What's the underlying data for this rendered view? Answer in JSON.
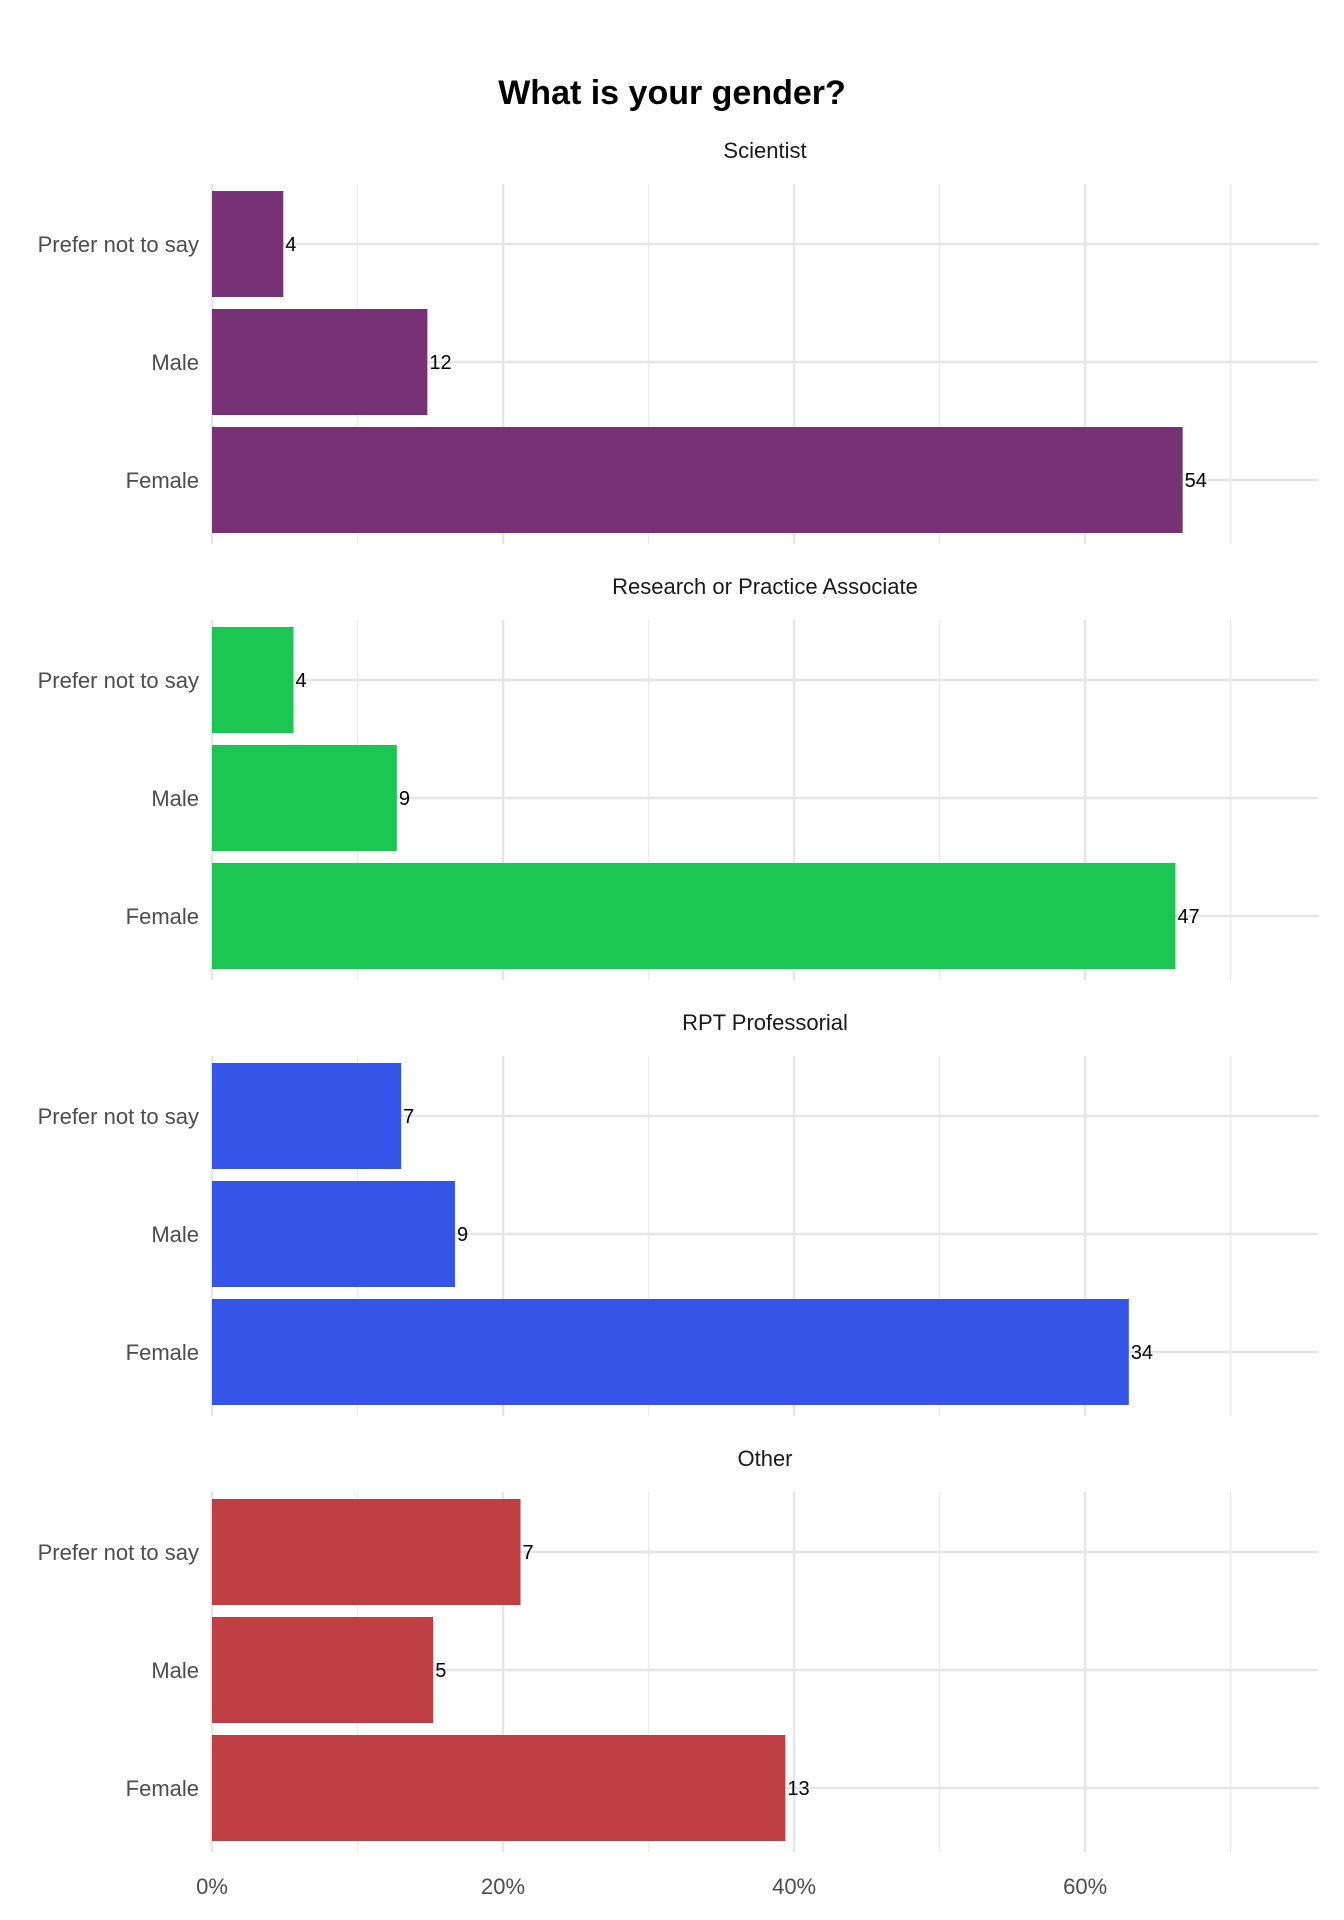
{
  "chart_data": {
    "type": "bar",
    "orientation": "horizontal",
    "title": "What is your gender?",
    "categories": [
      "Prefer not to say",
      "Male",
      "Female"
    ],
    "x_axis": {
      "range_percent": [
        0,
        76
      ],
      "ticks": [
        0,
        20,
        40,
        60
      ],
      "tick_labels": [
        "0%",
        "20%",
        "40%",
        "60%"
      ]
    },
    "grid": true,
    "legend": "none",
    "panels": [
      {
        "name": "Scientist",
        "color": "#773175",
        "percent": [
          4.9,
          14.8,
          66.7
        ],
        "counts": [
          "4",
          "12",
          "54"
        ]
      },
      {
        "name": "Research or Practice Associate",
        "color": "#1bc653",
        "percent": [
          5.6,
          12.7,
          66.2
        ],
        "counts": [
          "4",
          "9",
          "47"
        ]
      },
      {
        "name": "RPT Professorial",
        "color": "#3455e8",
        "percent": [
          13.0,
          16.7,
          63.0
        ],
        "counts": [
          "7",
          "9",
          "34"
        ]
      },
      {
        "name": "Other",
        "color": "#c03f45",
        "percent": [
          21.2,
          15.2,
          39.4
        ],
        "counts": [
          "7",
          "5",
          "13"
        ]
      }
    ]
  }
}
